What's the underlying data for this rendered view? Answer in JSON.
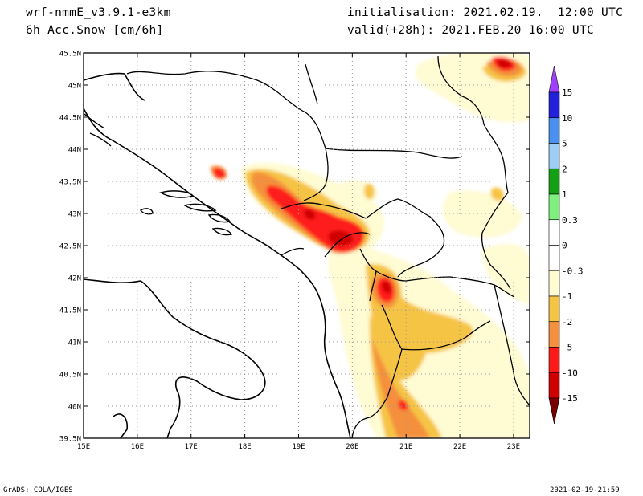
{
  "header": {
    "model": "wrf-nmmE_v3.9.1-e3km",
    "variable": "6h Acc.Snow [cm/6h]",
    "init": "initialisation: 2021.02.19.  12:00 UTC",
    "valid": "valid(+28h): 2021.FEB.20 16:00 UTC"
  },
  "map": {
    "lat_labels": [
      "45.5N",
      "45N",
      "44.5N",
      "44N",
      "43.5N",
      "43N",
      "42.5N",
      "42N",
      "41.5N",
      "41N",
      "40.5N",
      "40N",
      "39.5N"
    ],
    "lon_labels": [
      "15E",
      "16E",
      "17E",
      "18E",
      "19E",
      "20E",
      "21E",
      "22E",
      "23E"
    ],
    "lat_range": [
      39.5,
      45.5
    ],
    "lon_range": [
      15,
      23.3
    ]
  },
  "colorbar": {
    "labels": [
      "15",
      "10",
      "5",
      "2",
      "1",
      "0.3",
      "0",
      "-0.3",
      "-1",
      "-2",
      "-5",
      "-10",
      "-15"
    ],
    "colors": [
      "#2222dd",
      "#4a90ee",
      "#9fcef5",
      "#14a014",
      "#7ef07e",
      "#ffffff",
      "#ffffff",
      "#fffbd2",
      "#f6c445",
      "#f4903e",
      "#ff1a1a",
      "#d00000",
      "#960000"
    ],
    "cap_top_color": "#a040ff",
    "cap_bottom_color": "#7a0000"
  },
  "footer": {
    "left": "GrADS: COLA/IGES",
    "right": "2021-02-19-21:59"
  }
}
